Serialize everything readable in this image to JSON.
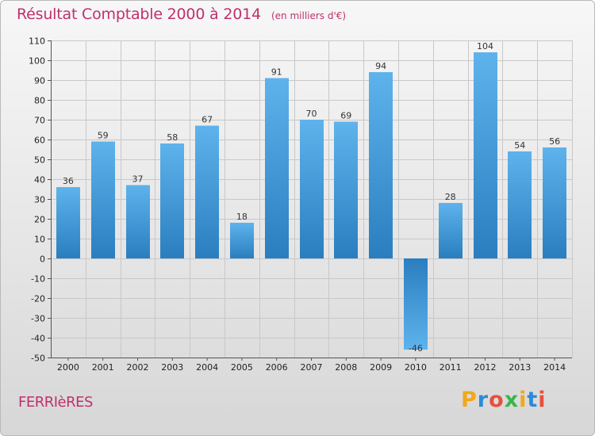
{
  "title": "Résultat Comptable 2000 à 2014",
  "subtitle": "(en milliers d'€)",
  "commune": "FERRIèRES",
  "logo": {
    "letters": [
      "P",
      "r",
      "o",
      "x",
      "i",
      "t",
      "i"
    ],
    "colors": [
      "#f0a81c",
      "#2e8ad8",
      "#e84f3c",
      "#3ab54a",
      "#f0a81c",
      "#2e8ad8",
      "#e84f3c"
    ]
  },
  "colors": {
    "bar_top": "#5eb3ec",
    "bar_bottom": "#2a7ebf",
    "title": "#c0306d",
    "grid": "#c8c8c8"
  },
  "chart_data": {
    "type": "bar",
    "title": "Résultat Comptable 2000 à 2014",
    "subtitle": "(en milliers d'€)",
    "categories": [
      "2000",
      "2001",
      "2002",
      "2003",
      "2004",
      "2005",
      "2006",
      "2007",
      "2008",
      "2009",
      "2010",
      "2011",
      "2012",
      "2013",
      "2014"
    ],
    "values": [
      36,
      59,
      37,
      58,
      67,
      18,
      91,
      70,
      69,
      94,
      -46,
      28,
      104,
      54,
      56
    ],
    "ylim": [
      -50,
      110
    ],
    "yticks": [
      110,
      100,
      90,
      80,
      70,
      60,
      50,
      40,
      30,
      20,
      10,
      0,
      -10,
      -20,
      -30,
      -40,
      -50
    ],
    "grid": true
  }
}
